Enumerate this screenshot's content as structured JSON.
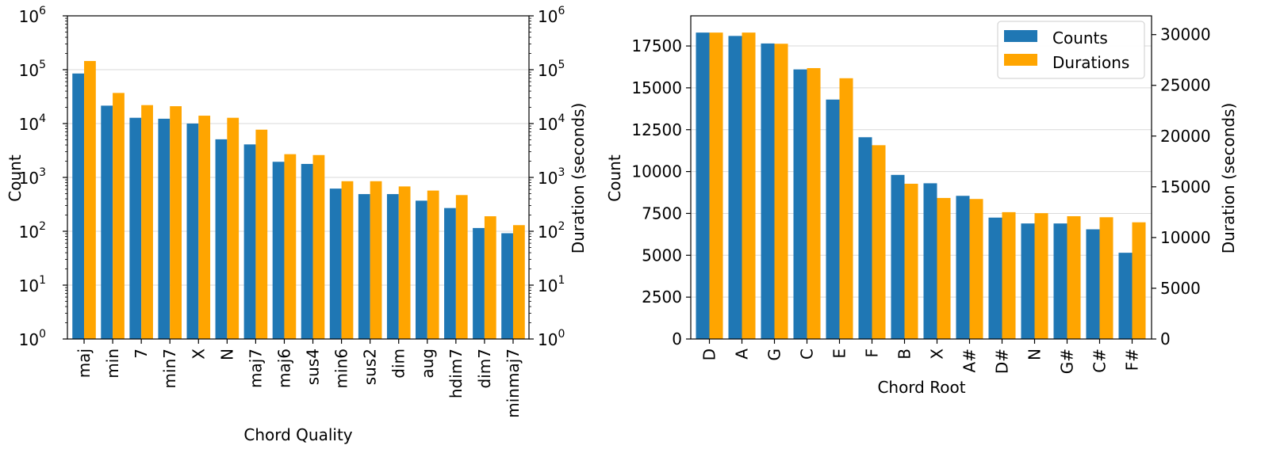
{
  "colors": {
    "counts": "#1f77b4",
    "durations": "#ffa500",
    "grid": "#d9d9d9",
    "axis": "#000000"
  },
  "chart_data": [
    {
      "type": "bar",
      "scale": "log",
      "categories": [
        "maj",
        "min",
        "7",
        "min7",
        "X",
        "N",
        "maj7",
        "maj6",
        "sus4",
        "min6",
        "sus2",
        "dim",
        "aug",
        "hdim7",
        "dim7",
        "minmaj7"
      ],
      "series": [
        {
          "name": "Counts",
          "axis": "left",
          "values": [
            85000,
            21500,
            12800,
            12300,
            10000,
            5100,
            4100,
            1950,
            1780,
            620,
            490,
            490,
            370,
            270,
            115,
            92
          ]
        },
        {
          "name": "Durations",
          "axis": "right",
          "values": [
            145000,
            37000,
            22000,
            21000,
            14000,
            12800,
            7700,
            2700,
            2600,
            850,
            850,
            680,
            570,
            470,
            190,
            130
          ]
        }
      ],
      "xlabel": "Chord Quality",
      "ylabel": "Count",
      "ylabel_right": "Duration (seconds)",
      "ylim": [
        1,
        1000000
      ],
      "ylim_right": [
        1,
        1000000
      ],
      "yticks": [
        {
          "value": 1,
          "base": "10",
          "exp": "0"
        },
        {
          "value": 10,
          "base": "10",
          "exp": "1"
        },
        {
          "value": 100,
          "base": "10",
          "exp": "2"
        },
        {
          "value": 1000,
          "base": "10",
          "exp": "3"
        },
        {
          "value": 10000,
          "base": "10",
          "exp": "4"
        },
        {
          "value": 100000,
          "base": "10",
          "exp": "5"
        },
        {
          "value": 1000000,
          "base": "10",
          "exp": "6"
        }
      ],
      "grid": true
    },
    {
      "type": "bar",
      "scale": "linear",
      "categories": [
        "D",
        "A",
        "G",
        "C",
        "E",
        "F",
        "B",
        "X",
        "A#",
        "D#",
        "N",
        "G#",
        "C#",
        "F#"
      ],
      "series": [
        {
          "name": "Counts",
          "axis": "left",
          "values": [
            18300,
            18100,
            17650,
            16100,
            14300,
            12050,
            9800,
            9300,
            8550,
            7250,
            6900,
            6900,
            6550,
            5150
          ]
        },
        {
          "name": "Durations",
          "axis": "right",
          "values": [
            30200,
            30200,
            29100,
            26700,
            25700,
            19100,
            15300,
            13900,
            13800,
            12500,
            12400,
            12100,
            12000,
            11500
          ]
        }
      ],
      "xlabel": "Chord Root",
      "ylabel": "Count",
      "ylabel_right": "Duration (seconds)",
      "ylim": [
        0,
        19300
      ],
      "ylim_right": [
        0,
        31850
      ],
      "yticks": [
        "0",
        "2500",
        "5000",
        "7500",
        "10000",
        "12500",
        "15000",
        "17500"
      ],
      "yticks_right": [
        "0",
        "5000",
        "10000",
        "15000",
        "20000",
        "25000",
        "30000"
      ],
      "legend": {
        "placement": "top-right",
        "entries": [
          "Counts",
          "Durations"
        ]
      },
      "grid": true
    }
  ]
}
